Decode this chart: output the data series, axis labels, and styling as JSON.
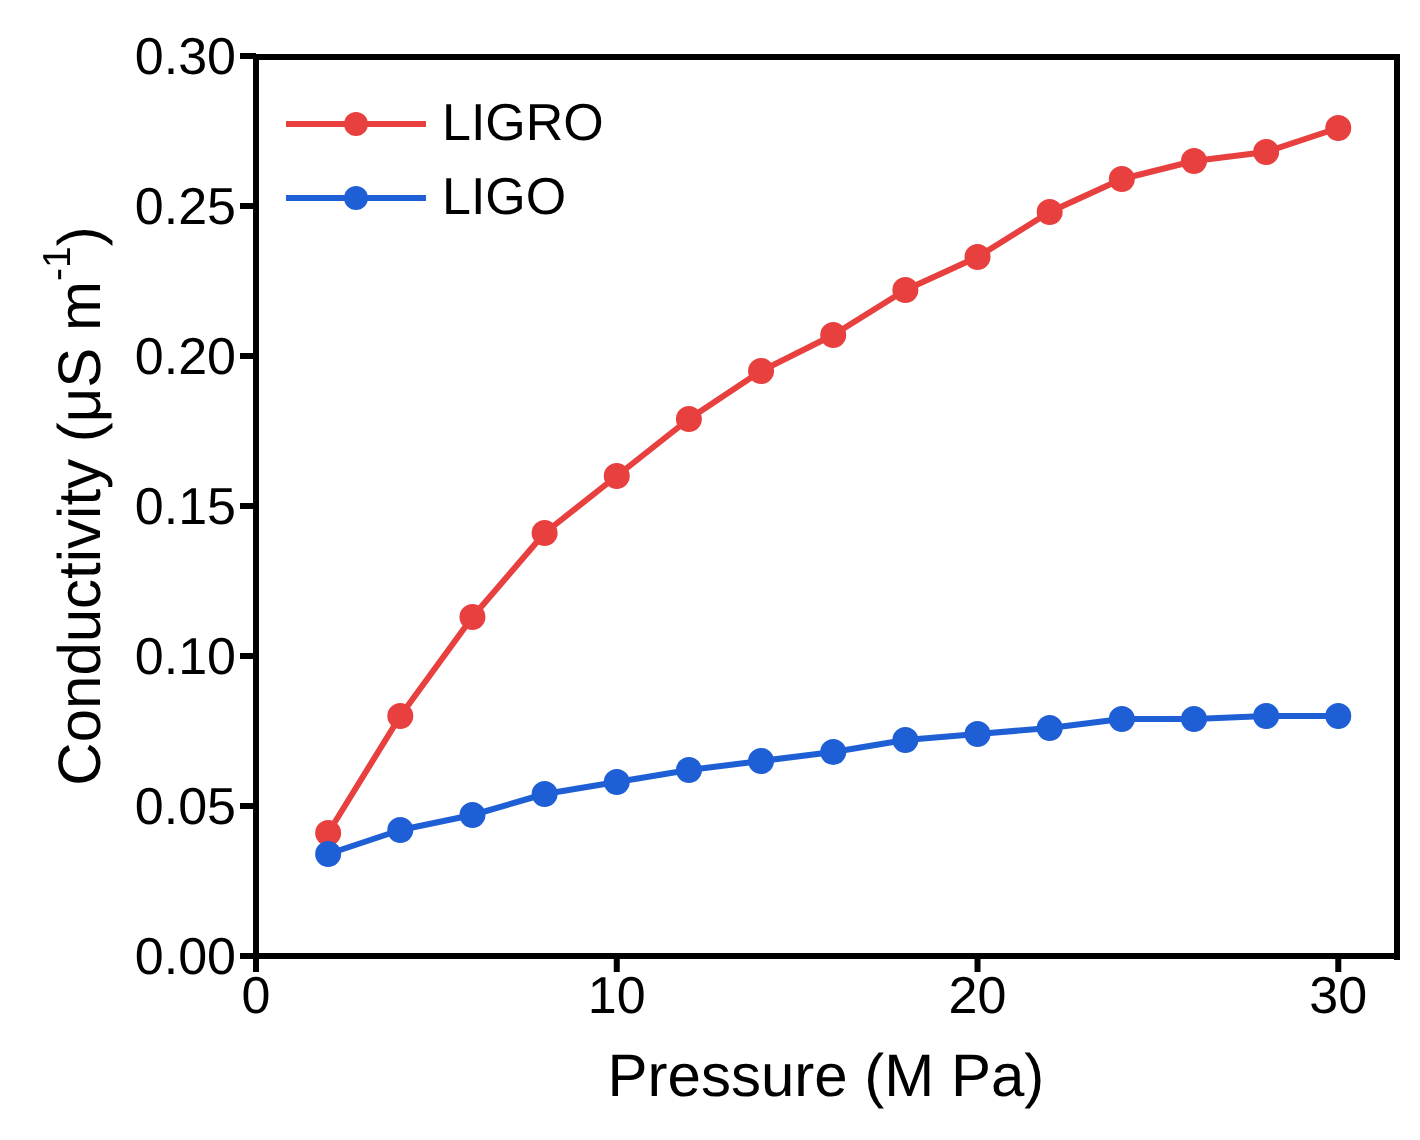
{
  "chart_data": {
    "type": "line",
    "xlabel": "Pressure (M Pa)",
    "ylabel": "Conductivity (μS m$^{-1}$)",
    "x": [
      2,
      4,
      6,
      8,
      10,
      12,
      14,
      16,
      18,
      20,
      22,
      24,
      26,
      28,
      30
    ],
    "series": [
      {
        "name": "LIGRO",
        "color": "#e8403f",
        "values": [
          0.041,
          0.08,
          0.113,
          0.141,
          0.16,
          0.179,
          0.195,
          0.207,
          0.222,
          0.233,
          0.248,
          0.259,
          0.265,
          0.268,
          0.276
        ]
      },
      {
        "name": "LIGO",
        "color": "#1f5fd6",
        "values": [
          0.034,
          0.042,
          0.047,
          0.054,
          0.058,
          0.062,
          0.065,
          0.068,
          0.072,
          0.074,
          0.076,
          0.079,
          0.079,
          0.08,
          0.08
        ]
      }
    ],
    "xlim": [
      0,
      31.6
    ],
    "xticks": [
      0,
      10,
      20,
      30
    ],
    "ylim": [
      0,
      0.3
    ],
    "yticks": [
      {
        "value": 0,
        "label": "0.00"
      },
      {
        "value": 0.05,
        "label": "0.05"
      },
      {
        "value": 0.1,
        "label": "0.10"
      },
      {
        "value": 0.15,
        "label": "0.15"
      },
      {
        "value": 0.2,
        "label": "0.20"
      },
      {
        "value": 0.25,
        "label": "0.25"
      },
      {
        "value": 0.3,
        "label": "0.30"
      }
    ],
    "grid": false,
    "legend": "top left",
    "marker": "circle",
    "line_style": "solid"
  }
}
